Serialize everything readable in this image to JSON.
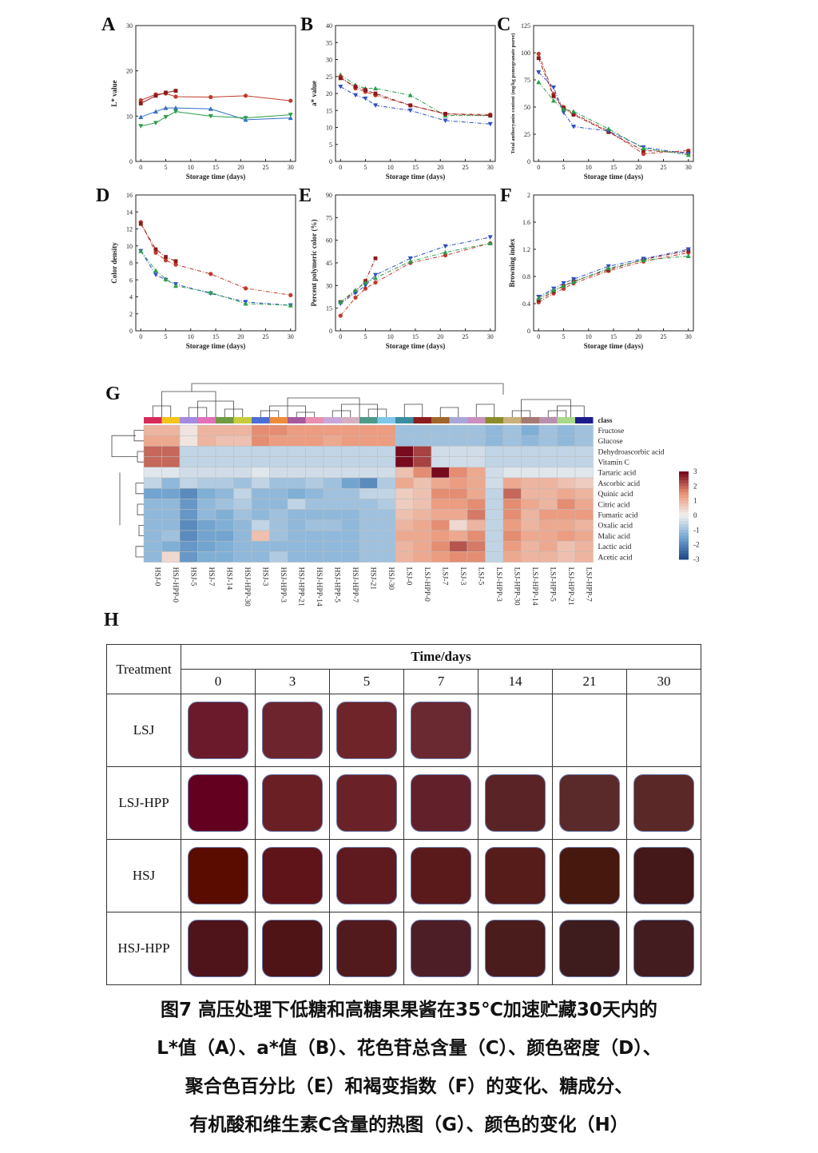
{
  "panels": {
    "A": {
      "letter": "A",
      "xlabel": "Storage time (days)",
      "ylabel": "L* value",
      "xticks": [
        0,
        5,
        10,
        15,
        20,
        25,
        30
      ],
      "yticks": [
        0,
        10,
        20,
        30
      ],
      "ylim": [
        0,
        30
      ]
    },
    "B": {
      "letter": "B",
      "xlabel": "Storage time (days)",
      "ylabel": "a* value",
      "xticks": [
        0,
        5,
        10,
        15,
        20,
        25,
        30
      ],
      "yticks": [
        0,
        5,
        10,
        15,
        20,
        25,
        30,
        35,
        40
      ],
      "ylim": [
        0,
        40
      ]
    },
    "C": {
      "letter": "C",
      "xlabel": "Storage time (days)",
      "ylabel": "Total anthocyanin content (mg/kg pomegranate puree)",
      "xticks": [
        0,
        5,
        10,
        15,
        20,
        25,
        30
      ],
      "yticks": [
        0,
        25,
        50,
        75,
        100,
        125
      ],
      "ylim": [
        0,
        125
      ]
    },
    "D": {
      "letter": "D",
      "xlabel": "Storage time (days)",
      "ylabel": "Color density",
      "xticks": [
        0,
        5,
        10,
        15,
        20,
        25,
        30
      ],
      "yticks": [
        0,
        2,
        4,
        6,
        8,
        10,
        12,
        14,
        16
      ],
      "ylim": [
        0,
        16
      ]
    },
    "E": {
      "letter": "E",
      "xlabel": "Storage time (days)",
      "ylabel": "Percent polymeric color (%)",
      "xticks": [
        0,
        5,
        10,
        15,
        20,
        25,
        30
      ],
      "yticks": [
        0,
        15,
        30,
        45,
        60,
        75,
        90
      ],
      "ylim": [
        0,
        90
      ]
    },
    "F": {
      "letter": "F",
      "xlabel": "Storage time (days)",
      "ylabel": "Browning index",
      "xticks": [
        0,
        5,
        10,
        15,
        20,
        25,
        30
      ],
      "yticks": [
        0.0,
        0.4,
        0.8,
        1.2,
        1.6,
        2.0
      ],
      "ylim": [
        0,
        2.0
      ]
    }
  },
  "chart_data": [
    {
      "type": "line",
      "panel": "A",
      "x": [
        0,
        3,
        5,
        7,
        14,
        21,
        30
      ],
      "series": [
        {
          "color": "#c0392b",
          "marker": "circle",
          "values": [
            13.5,
            14.8,
            15.0,
            14.3,
            14.2,
            14.5,
            13.4
          ]
        },
        {
          "color": "#8a1a1a",
          "marker": "square",
          "values": [
            12.8,
            14.5,
            15.2,
            15.6,
            null,
            null,
            null
          ]
        },
        {
          "color": "#2f6fc4",
          "marker": "triangle",
          "values": [
            9.8,
            11.0,
            11.8,
            11.8,
            11.6,
            9.2,
            9.6
          ]
        },
        {
          "color": "#2a9d4a",
          "marker": "triangle-down",
          "values": [
            7.8,
            8.5,
            9.8,
            11.0,
            10.0,
            9.6,
            10.3
          ]
        }
      ]
    },
    {
      "type": "line",
      "panel": "B",
      "x": [
        0,
        3,
        5,
        7,
        14,
        21,
        30
      ],
      "series": [
        {
          "color": "#2a9d4a",
          "marker": "triangle",
          "values": [
            25.5,
            22.5,
            21.5,
            21.5,
            19.5,
            13.5,
            13.5
          ]
        },
        {
          "color": "#c0392b",
          "marker": "circle",
          "values": [
            25.0,
            21.5,
            20.5,
            19.5,
            16.5,
            14.0,
            13.8
          ]
        },
        {
          "color": "#8a1a1a",
          "marker": "square",
          "values": [
            24.5,
            22.0,
            21.0,
            20.0,
            16.5,
            14.0,
            13.5
          ]
        },
        {
          "color": "#2f4fc4",
          "marker": "triangle-down",
          "values": [
            22.0,
            19.5,
            18.5,
            16.5,
            15.0,
            12.0,
            11.0
          ]
        }
      ]
    },
    {
      "type": "line",
      "panel": "C",
      "x": [
        0,
        3,
        5,
        7,
        14,
        21,
        30
      ],
      "series": [
        {
          "color": "#c0392b",
          "marker": "circle",
          "values": [
            99,
            62,
            50,
            44,
            28,
            7,
            10
          ]
        },
        {
          "color": "#8a1a1a",
          "marker": "square",
          "values": [
            95,
            60,
            49,
            43,
            27,
            10,
            8
          ]
        },
        {
          "color": "#2f4fc4",
          "marker": "triangle-down",
          "values": [
            82,
            68,
            45,
            32,
            28,
            13,
            7
          ]
        },
        {
          "color": "#2a9d4a",
          "marker": "triangle",
          "values": [
            73,
            56,
            48,
            46,
            30,
            12,
            6
          ]
        }
      ]
    },
    {
      "type": "line",
      "panel": "D",
      "x": [
        0,
        3,
        5,
        7,
        14,
        21,
        30
      ],
      "series": [
        {
          "color": "#c0392b",
          "marker": "circle",
          "values": [
            12.8,
            9.2,
            8.3,
            7.8,
            6.7,
            5.0,
            4.2
          ]
        },
        {
          "color": "#8a1a1a",
          "marker": "square",
          "values": [
            12.6,
            9.6,
            8.7,
            8.2,
            null,
            null,
            null
          ]
        },
        {
          "color": "#2f4fc4",
          "marker": "triangle-down",
          "values": [
            9.4,
            6.6,
            6.0,
            5.5,
            4.4,
            3.4,
            3.0
          ]
        },
        {
          "color": "#2a9d4a",
          "marker": "triangle",
          "values": [
            9.4,
            7.1,
            6.1,
            5.3,
            4.5,
            3.2,
            3.0
          ]
        }
      ]
    },
    {
      "type": "line",
      "panel": "E",
      "x": [
        0,
        3,
        5,
        7,
        14,
        21,
        30
      ],
      "series": [
        {
          "color": "#c0392b",
          "marker": "circle",
          "values": [
            10,
            22,
            28,
            32,
            45,
            50,
            58
          ]
        },
        {
          "color": "#8a1a1a",
          "marker": "square",
          "values": [
            19,
            26,
            33,
            48,
            null,
            null,
            null
          ]
        },
        {
          "color": "#2f4fc4",
          "marker": "triangle-down",
          "values": [
            18,
            25,
            30,
            37,
            48,
            56,
            62
          ]
        },
        {
          "color": "#2a9d4a",
          "marker": "triangle",
          "values": [
            19,
            27,
            32,
            35,
            46,
            52,
            58
          ]
        }
      ]
    },
    {
      "type": "line",
      "panel": "F",
      "x": [
        0,
        3,
        5,
        7,
        14,
        21,
        30
      ],
      "series": [
        {
          "color": "#c0392b",
          "marker": "circle",
          "values": [
            0.42,
            0.55,
            0.62,
            0.7,
            0.88,
            1.02,
            1.15
          ]
        },
        {
          "color": "#8a1a1a",
          "marker": "square",
          "values": [
            0.45,
            0.58,
            0.66,
            0.73,
            0.9,
            1.05,
            1.18
          ]
        },
        {
          "color": "#2f4fc4",
          "marker": "triangle-down",
          "values": [
            0.5,
            0.62,
            0.7,
            0.76,
            0.95,
            1.06,
            1.2
          ]
        },
        {
          "color": "#2a9d4a",
          "marker": "triangle",
          "values": [
            0.48,
            0.6,
            0.66,
            0.72,
            0.92,
            1.04,
            1.1
          ]
        }
      ]
    },
    {
      "type": "heatmap",
      "panel": "G",
      "columns": [
        "HSJ-0",
        "HSJ-HPP-0",
        "HSJ-5",
        "HSJ-7",
        "HSJ-14",
        "HSJ-HPP-30",
        "HSJ-3",
        "HSJ-HPP-3",
        "HSJ-HPP-21",
        "HSJ-HPP-14",
        "HSJ-HPP-5",
        "HSJ-HPP-7",
        "HSJ-21",
        "HSJ-30",
        "LSJ-0",
        "LSJ-HPP-0",
        "LSJ-7",
        "LSJ-3",
        "LSJ-5",
        "LSJ-HPP-3",
        "LSJ-HPP-30",
        "LSJ-HPP-14",
        "LSJ-HPP-5",
        "LSJ-HPP-21",
        "LSJ-HPP-7"
      ],
      "rows": [
        "Fructose",
        "Glucose",
        "Dehydroascorbic acid",
        "Vitamin C",
        "Tartaric acid",
        "Ascorbic acid",
        "Quinic acid",
        "Citric acid",
        "Fumaric acid",
        "Oxalic acid",
        "Malic acid",
        "Lactic acid",
        "Acetic acid"
      ],
      "class_label": "class",
      "class_colors": [
        "#d62a5a",
        "#f2c41c",
        "#a48be0",
        "#e271b8",
        "#6f9a43",
        "#c8cc3a",
        "#4e6ed6",
        "#ee8b3a",
        "#a7599d",
        "#e88fb0",
        "#c9a7d8",
        "#d6b0c0",
        "#4d9a88",
        "#7fc7ea",
        "#3a8da0",
        "#8b1d1d",
        "#a2652a",
        "#a9a7d8",
        "#c98fbf",
        "#8c8c2a",
        "#c8b07a",
        "#a47a72",
        "#b98fb0",
        "#a8d88a",
        "#1c1c8a"
      ],
      "legend_ticks": [
        3,
        2,
        1,
        0,
        -1,
        -2,
        -3
      ],
      "values": [
        [
          1.0,
          1.0,
          0.2,
          1.0,
          1.0,
          1.0,
          1.6,
          1.6,
          1.4,
          1.4,
          1.4,
          1.4,
          1.4,
          1.4,
          -1.0,
          -1.0,
          -1.0,
          -1.0,
          -1.0,
          -1.2,
          -1.0,
          -1.4,
          -1.0,
          -1.2,
          -1.0
        ],
        [
          1.2,
          1.2,
          0.2,
          1.0,
          0.8,
          0.8,
          1.6,
          1.4,
          1.4,
          1.4,
          1.2,
          1.4,
          1.4,
          1.4,
          -1.0,
          -1.0,
          -1.0,
          -1.0,
          -1.0,
          -1.2,
          -1.0,
          -1.2,
          -1.0,
          -1.2,
          -1.0
        ],
        [
          2.0,
          2.0,
          -0.6,
          -0.6,
          -0.6,
          -0.6,
          -0.6,
          -0.6,
          -0.6,
          -0.6,
          -0.6,
          -0.6,
          -0.6,
          -0.6,
          3.0,
          2.4,
          -0.4,
          -0.4,
          -0.4,
          -0.6,
          -0.6,
          -0.6,
          -0.6,
          -0.6,
          -0.6
        ],
        [
          2.0,
          2.0,
          -0.6,
          -0.6,
          -0.6,
          -0.6,
          -0.6,
          -0.6,
          -0.6,
          -0.6,
          -0.6,
          -0.6,
          -0.6,
          -0.6,
          3.0,
          2.4,
          -0.4,
          -0.4,
          -0.4,
          -0.6,
          -0.6,
          -0.6,
          -0.6,
          -0.6,
          -0.6
        ],
        [
          -0.2,
          -0.2,
          -0.4,
          -0.4,
          -0.4,
          -0.4,
          -0.2,
          -0.4,
          -0.4,
          -0.4,
          -0.4,
          -0.4,
          -0.4,
          -0.4,
          0.8,
          1.6,
          3.4,
          1.6,
          1.2,
          -0.4,
          -0.2,
          -0.2,
          -0.2,
          -0.2,
          -0.2
        ],
        [
          -0.6,
          -1.2,
          -0.6,
          -0.8,
          -0.8,
          -1.0,
          -0.6,
          -1.0,
          -1.0,
          -0.8,
          -1.0,
          -1.6,
          -2.0,
          -0.8,
          1.2,
          0.8,
          1.2,
          1.4,
          1.2,
          -0.4,
          1.2,
          1.0,
          1.0,
          0.8,
          0.6
        ],
        [
          -1.6,
          -1.6,
          -2.0,
          -1.4,
          -1.2,
          -0.6,
          -1.2,
          -1.2,
          -1.4,
          -1.2,
          -1.0,
          -1.0,
          -0.6,
          -0.6,
          0.6,
          0.8,
          1.6,
          1.6,
          1.2,
          -0.6,
          2.0,
          1.0,
          1.0,
          1.2,
          1.0
        ],
        [
          -1.2,
          -1.2,
          -1.8,
          -1.2,
          -1.0,
          -0.8,
          -1.2,
          -1.2,
          -0.6,
          -1.0,
          -1.0,
          -1.0,
          -1.0,
          -0.8,
          0.6,
          0.8,
          1.4,
          1.4,
          1.6,
          -0.6,
          1.6,
          1.2,
          1.0,
          1.6,
          1.2
        ],
        [
          -1.2,
          -1.2,
          -1.8,
          -1.2,
          -1.4,
          -1.0,
          -1.2,
          -1.0,
          -1.2,
          -1.2,
          -1.2,
          -1.2,
          -1.0,
          -1.0,
          0.8,
          1.0,
          1.2,
          1.2,
          1.8,
          -0.6,
          1.6,
          1.0,
          1.4,
          1.4,
          1.4
        ],
        [
          -1.2,
          -1.2,
          -2.0,
          -1.6,
          -1.4,
          -1.2,
          -0.6,
          -1.0,
          -1.2,
          -1.0,
          -1.0,
          -1.2,
          -1.0,
          -1.0,
          1.0,
          1.2,
          1.6,
          0.4,
          1.0,
          -0.6,
          1.4,
          1.0,
          1.2,
          1.2,
          1.0
        ],
        [
          -1.2,
          -1.0,
          -2.0,
          -1.6,
          -1.6,
          -1.2,
          0.8,
          -1.0,
          -1.2,
          -1.2,
          -1.2,
          -1.2,
          -1.0,
          -1.0,
          1.2,
          1.2,
          1.4,
          1.2,
          1.6,
          -0.6,
          1.6,
          1.2,
          1.2,
          1.4,
          1.2
        ],
        [
          -1.2,
          -1.4,
          -1.8,
          -1.6,
          -1.4,
          -1.2,
          -1.2,
          -1.2,
          -1.2,
          -1.2,
          -1.2,
          -1.2,
          -1.0,
          -1.0,
          1.0,
          1.2,
          1.6,
          2.2,
          1.8,
          -0.6,
          1.4,
          1.0,
          1.2,
          0.8,
          1.0
        ],
        [
          -1.2,
          0.4,
          -1.8,
          -1.4,
          -1.4,
          -1.2,
          -1.2,
          -0.8,
          -1.2,
          -1.2,
          -1.2,
          -1.2,
          -1.0,
          -1.0,
          1.0,
          1.2,
          1.4,
          1.6,
          1.6,
          -0.6,
          1.2,
          1.0,
          1.0,
          0.8,
          1.0
        ]
      ]
    }
  ],
  "panelG": {
    "letter": "G"
  },
  "panelH": {
    "letter": "H",
    "treatment_header": "Treatment",
    "time_header": "Time/days",
    "days": [
      "0",
      "3",
      "5",
      "7",
      "14",
      "21",
      "30"
    ],
    "rows": [
      {
        "label": "LSJ",
        "colors": [
          "#6a1a2a",
          "#6e242c",
          "#6e2428",
          "#6a2830",
          null,
          null,
          null
        ]
      },
      {
        "label": "LSJ-HPP",
        "colors": [
          "#64001f",
          "#6a1f24",
          "#6a2228",
          "#62202a",
          "#5a2426",
          "#5a2a2a",
          "#5a2826"
        ]
      },
      {
        "label": "HSJ",
        "colors": [
          "#5a0c00",
          "#5e1418",
          "#5e1a1e",
          "#5a1a1c",
          "#561c1a",
          "#46180e",
          "#441818"
        ]
      },
      {
        "label": "HSJ-HPP",
        "colors": [
          "#4e141a",
          "#4e1416",
          "#521a1c",
          "#4e1e26",
          "#4a1c1c",
          "#3e1c1e",
          "#421c1e"
        ]
      }
    ]
  },
  "caption": [
    "图7 高压处理下低糖和高糖果果酱在35℃加速贮藏30天内的",
    "L*值（A）、a*值（B）、花色苷总含量（C）、颜色密度（D）、",
    "聚合色百分比（E）和褐变指数（F）的变化、糖成分、",
    "有机酸和维生素C含量的热图（G）、颜色的变化（H）"
  ]
}
